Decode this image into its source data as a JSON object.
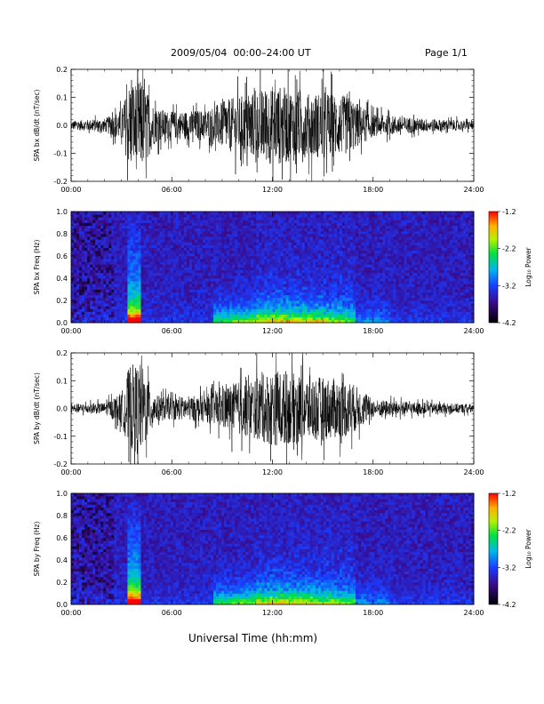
{
  "header": {
    "title": "2009/05/04  00:00–24:00 UT",
    "page": "Page 1/1"
  },
  "xaxis_title": "Universal Time (hh:mm)",
  "chart_data": [
    {
      "type": "line",
      "ylabel": "SPA bx dB/dt (nT/sec)",
      "xlim": [
        0,
        24
      ],
      "ylim": [
        -0.2,
        0.2
      ],
      "xticks": [
        "00:00",
        "06:00",
        "12:00",
        "18:00",
        "24:00"
      ],
      "yticks": [
        "-0.2",
        "-0.1",
        "0.0",
        "0.1",
        "0.2"
      ],
      "envelope": [
        {
          "x": 0,
          "amp": 0.02
        },
        {
          "x": 2,
          "amp": 0.03
        },
        {
          "x": 3,
          "amp": 0.07
        },
        {
          "x": 3.5,
          "amp": 0.2
        },
        {
          "x": 4.2,
          "amp": 0.2
        },
        {
          "x": 5,
          "amp": 0.08
        },
        {
          "x": 6,
          "amp": 0.06
        },
        {
          "x": 8,
          "amp": 0.07
        },
        {
          "x": 9.5,
          "amp": 0.12
        },
        {
          "x": 11,
          "amp": 0.15
        },
        {
          "x": 12,
          "amp": 0.18
        },
        {
          "x": 13,
          "amp": 0.17
        },
        {
          "x": 14,
          "amp": 0.14
        },
        {
          "x": 15,
          "amp": 0.15
        },
        {
          "x": 16.5,
          "amp": 0.13
        },
        {
          "x": 18,
          "amp": 0.05
        },
        {
          "x": 21,
          "amp": 0.03
        },
        {
          "x": 24,
          "amp": 0.02
        }
      ]
    },
    {
      "type": "heatmap",
      "ylabel": "SPA bx Freq (Hz)",
      "xlim": [
        0,
        24
      ],
      "ylim": [
        0,
        1.0
      ],
      "xticks": [
        "00:00",
        "06:00",
        "12:00",
        "18:00",
        "24:00"
      ],
      "yticks": [
        "0.0",
        "0.2",
        "0.4",
        "0.6",
        "0.8",
        "1.0"
      ],
      "colorbar": {
        "label": "Log₁₀ Power",
        "range": [
          -4.2,
          -1.2
        ],
        "ticks": [
          "-1.2",
          "-2.2",
          "-3.2",
          "-4.2"
        ]
      }
    },
    {
      "type": "line",
      "ylabel": "SPA by dB/dt (nT/sec)",
      "xlim": [
        0,
        24
      ],
      "ylim": [
        -0.2,
        0.2
      ],
      "xticks": [
        "00:00",
        "06:00",
        "12:00",
        "18:00",
        "24:00"
      ],
      "yticks": [
        "-0.2",
        "-0.1",
        "0.0",
        "0.1",
        "0.2"
      ],
      "envelope": [
        {
          "x": 0,
          "amp": 0.02
        },
        {
          "x": 2,
          "amp": 0.025
        },
        {
          "x": 3,
          "amp": 0.07
        },
        {
          "x": 3.5,
          "amp": 0.2
        },
        {
          "x": 4.2,
          "amp": 0.2
        },
        {
          "x": 5,
          "amp": 0.06
        },
        {
          "x": 6,
          "amp": 0.05
        },
        {
          "x": 8,
          "amp": 0.06
        },
        {
          "x": 9.5,
          "amp": 0.11
        },
        {
          "x": 11,
          "amp": 0.14
        },
        {
          "x": 12,
          "amp": 0.17
        },
        {
          "x": 13,
          "amp": 0.16
        },
        {
          "x": 14,
          "amp": 0.15
        },
        {
          "x": 15,
          "amp": 0.14
        },
        {
          "x": 16.5,
          "amp": 0.13
        },
        {
          "x": 18,
          "amp": 0.04
        },
        {
          "x": 21,
          "amp": 0.025
        },
        {
          "x": 24,
          "amp": 0.02
        }
      ]
    },
    {
      "type": "heatmap",
      "ylabel": "SPA by Freq (Hz)",
      "xlim": [
        0,
        24
      ],
      "ylim": [
        0,
        1.0
      ],
      "xticks": [
        "00:00",
        "06:00",
        "12:00",
        "18:00",
        "24:00"
      ],
      "yticks": [
        "0.0",
        "0.2",
        "0.4",
        "0.6",
        "0.8",
        "1.0"
      ],
      "colorbar": {
        "label": "Log₁₀ Power",
        "range": [
          -4.2,
          -1.2
        ],
        "ticks": [
          "-1.2",
          "-2.2",
          "-3.2",
          "-4.2"
        ]
      }
    }
  ]
}
